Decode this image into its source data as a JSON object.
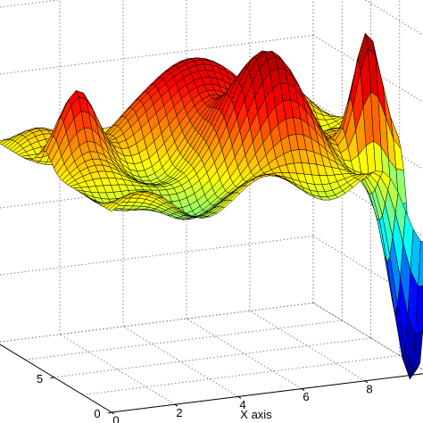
{
  "chart_data": {
    "type": "surface",
    "xlabel": "X axis",
    "ylabel": "",
    "zlabel": "",
    "title": "",
    "xlim": [
      0,
      10
    ],
    "ylim": [
      0,
      10
    ],
    "x_ticks": [
      "0",
      "2",
      "4",
      "6",
      "8"
    ],
    "y_ticks": [
      "0",
      "5"
    ],
    "grid": true,
    "colormap": "jet",
    "colormap_stops": [
      "#00008f",
      "#0000ff",
      "#00ffff",
      "#ffff00",
      "#ff0000",
      "#800000"
    ],
    "surface": {
      "grid_resolution": 42,
      "base_level": 0.0,
      "peaks": [
        {
          "x": 5.0,
          "y": 6.8,
          "height": 0.75,
          "spread": 1.2
        },
        {
          "x": 6.0,
          "y": 3.2,
          "height": 0.85,
          "spread": 1.0
        },
        {
          "x": 1.0,
          "y": 5.8,
          "height": 0.6,
          "spread": 0.6
        },
        {
          "x": 9.1,
          "y": 2.8,
          "height": 1.0,
          "spread": 0.45
        },
        {
          "x": 8.0,
          "y": 8.2,
          "height": 0.35,
          "spread": 0.7
        }
      ],
      "troughs": [
        {
          "x": 9.8,
          "y": 0.9,
          "depth": 1.6,
          "spread": 0.6
        },
        {
          "x": 3.0,
          "y": 2.0,
          "depth": 0.35,
          "spread": 0.8
        }
      ],
      "ripple_amplitude": 0.12,
      "z_range": [
        -1.5,
        1.0
      ]
    }
  }
}
